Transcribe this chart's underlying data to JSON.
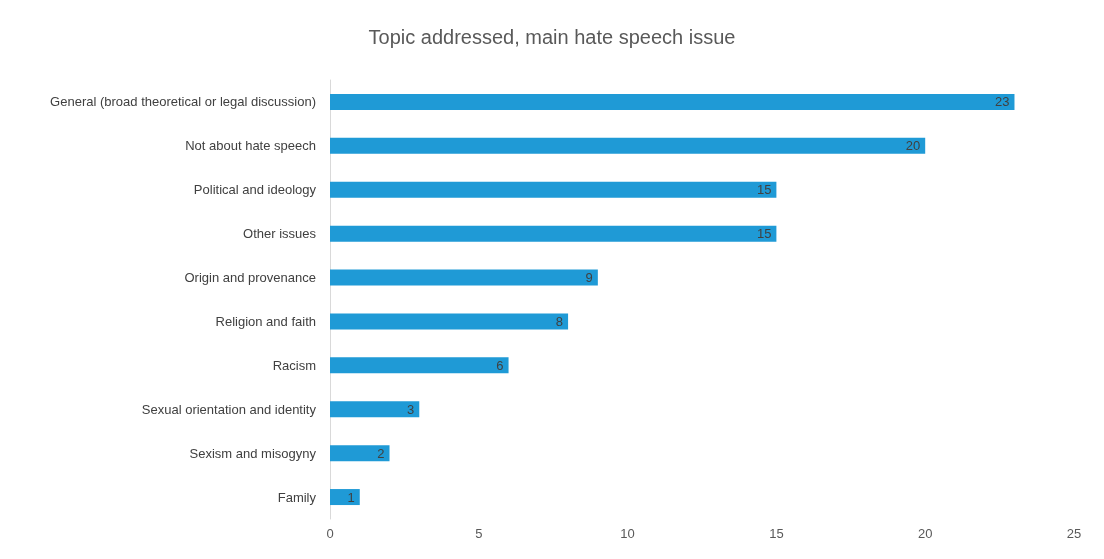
{
  "chart_data": {
    "type": "bar",
    "orientation": "horizontal",
    "title": "Topic addressed, main hate speech issue",
    "categories": [
      "General (broad theoretical or legal discussion)",
      "Not about hate speech",
      "Political and ideology",
      "Other issues",
      "Origin and provenance",
      "Religion and faith",
      "Racism",
      "Sexual orientation and identity",
      "Sexism and misogyny",
      "Family"
    ],
    "values": [
      23,
      20,
      15,
      15,
      9,
      8,
      6,
      3,
      2,
      1
    ],
    "color": "#1f9ad6",
    "xlim": [
      0,
      25
    ],
    "xticks": [
      0,
      5,
      10,
      15,
      20,
      25
    ],
    "grid": false,
    "data_labels": true
  }
}
